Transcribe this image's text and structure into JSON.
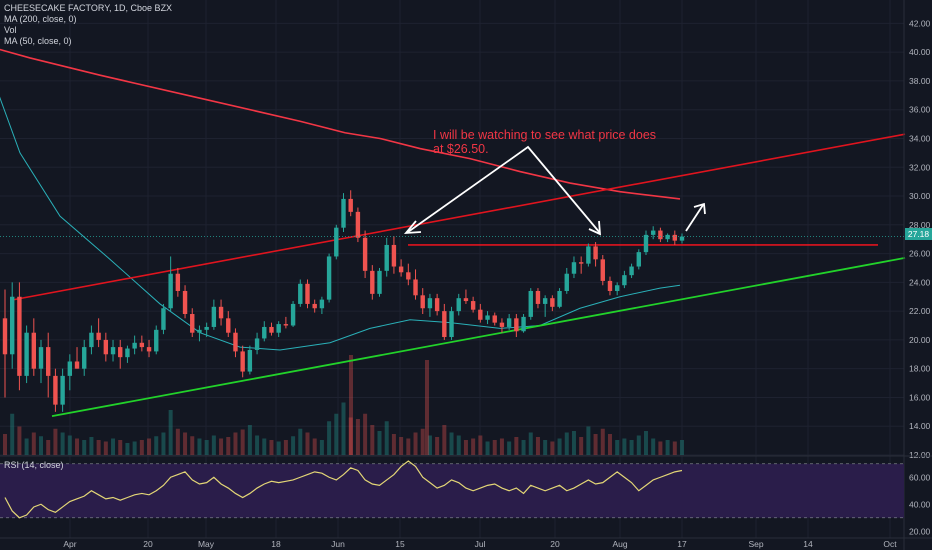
{
  "header": {
    "symbol_line": "CHEESECAKE FACTORY, 1D, Cboe BZX",
    "indicators": [
      "MA (200, close, 0)",
      "Vol",
      "MA (50, close, 0)"
    ],
    "rsi_label": "RSI (14, close)"
  },
  "annotation": {
    "line1": "I will be watching to see what price does",
    "line2": "at $26.50."
  },
  "last_price": "27.18",
  "colors": {
    "background": "#131722",
    "up": "#26a69a",
    "down": "#ef5350",
    "ma200": "#f23645",
    "ma50": "#2ab0b8",
    "rsi": "#e3d676",
    "rsi_band": "#2a1d4a",
    "support": "#22d22a",
    "resistance": "#e0141e",
    "arrow": "#ffffff"
  },
  "chart_data": {
    "type": "candlestick",
    "ylim": [
      12,
      43
    ],
    "yticks": [
      12,
      14,
      16,
      18,
      20,
      22,
      24,
      26,
      28,
      30,
      32,
      34,
      36,
      38,
      40,
      42
    ],
    "xticks": [
      "Apr",
      "20",
      "May",
      "18",
      "Jun",
      "15",
      "Jul",
      "20",
      "Aug",
      "17",
      "Sep",
      "14",
      "Oct"
    ],
    "rsi": {
      "ylim": [
        15,
        75
      ],
      "yticks": [
        "60.00",
        "40.00",
        "20.00"
      ],
      "band": [
        30,
        70
      ]
    },
    "candles_ohlc": [
      [
        21.5,
        23.5,
        16,
        19
      ],
      [
        19,
        24,
        18,
        23
      ],
      [
        23,
        24,
        16.5,
        17.5
      ],
      [
        17.5,
        21,
        17,
        20.5
      ],
      [
        20.5,
        21.5,
        17.5,
        18
      ],
      [
        18,
        20,
        17,
        19.5
      ],
      [
        19.5,
        20.5,
        16,
        17.5
      ],
      [
        17.5,
        18,
        15,
        15.5
      ],
      [
        15.5,
        18,
        15,
        17.5
      ],
      [
        17.5,
        19,
        16.5,
        18.5
      ],
      [
        18.5,
        19.5,
        18,
        18
      ],
      [
        18,
        20,
        17.5,
        19.5
      ],
      [
        19.5,
        21,
        19,
        20.5
      ],
      [
        20.5,
        21.5,
        19.5,
        20
      ],
      [
        20,
        20.5,
        18.5,
        19
      ],
      [
        19,
        20,
        18.5,
        19.5
      ],
      [
        19.5,
        20,
        18,
        18.8
      ],
      [
        18.8,
        19.6,
        18.4,
        19.4
      ],
      [
        19.4,
        20.3,
        19,
        19.8
      ],
      [
        19.8,
        20.3,
        19.2,
        19.5
      ],
      [
        19.5,
        20,
        18.8,
        19.2
      ],
      [
        19.2,
        21,
        19,
        20.7
      ],
      [
        20.7,
        22.5,
        20.4,
        22.2
      ],
      [
        22.2,
        25.8,
        22,
        24.6
      ],
      [
        24.6,
        25,
        23,
        23.4
      ],
      [
        23.4,
        23.8,
        21.5,
        21.8
      ],
      [
        21.8,
        22.2,
        20.2,
        20.5
      ],
      [
        20.5,
        21,
        19.9,
        20.7
      ],
      [
        20.7,
        21.2,
        20.2,
        20.9
      ],
      [
        20.9,
        22.8,
        20.7,
        22.3
      ],
      [
        22.3,
        22.8,
        21,
        21.5
      ],
      [
        21.5,
        22,
        20.2,
        20.5
      ],
      [
        20.5,
        20.8,
        18.8,
        19.2
      ],
      [
        19.2,
        19.6,
        17.4,
        17.8
      ],
      [
        17.8,
        19.6,
        17.6,
        19.3
      ],
      [
        19.3,
        20.5,
        19,
        20.1
      ],
      [
        20.1,
        21.3,
        19.9,
        20.9
      ],
      [
        20.9,
        21.2,
        20.3,
        20.5
      ],
      [
        20.5,
        21.3,
        20.2,
        21.1
      ],
      [
        21.1,
        21.6,
        20.8,
        21
      ],
      [
        21,
        22.7,
        20.9,
        22.5
      ],
      [
        22.5,
        24.2,
        22.3,
        23.9
      ],
      [
        23.9,
        24.2,
        22.2,
        22.5
      ],
      [
        22.5,
        22.8,
        21.9,
        22.2
      ],
      [
        22.2,
        23,
        21.8,
        22.8
      ],
      [
        22.8,
        26,
        22.6,
        25.8
      ],
      [
        25.8,
        28,
        25.6,
        27.8
      ],
      [
        27.8,
        30.2,
        27.5,
        29.8
      ],
      [
        29.8,
        30.4,
        28.6,
        28.9
      ],
      [
        28.9,
        29.2,
        26.8,
        27.1
      ],
      [
        27.1,
        27.6,
        24.3,
        24.8
      ],
      [
        24.8,
        25.2,
        22.8,
        23.2
      ],
      [
        23.2,
        25,
        23,
        24.8
      ],
      [
        24.8,
        27.1,
        24.4,
        26.6
      ],
      [
        26.6,
        27.2,
        24.6,
        25.1
      ],
      [
        25.1,
        25.6,
        24.4,
        24.7
      ],
      [
        24.7,
        25.3,
        23.8,
        24.2
      ],
      [
        24.2,
        24.9,
        22.8,
        23.1
      ],
      [
        23.1,
        23.6,
        21.8,
        22.2
      ],
      [
        22.2,
        23.2,
        21.6,
        22.9
      ],
      [
        22.9,
        23.2,
        21.7,
        22
      ],
      [
        22,
        22.5,
        20,
        20.2
      ],
      [
        20.2,
        22.3,
        20,
        22
      ],
      [
        22,
        23.2,
        21.7,
        22.9
      ],
      [
        22.9,
        23.5,
        22.5,
        22.7
      ],
      [
        22.7,
        23,
        21.9,
        22.1
      ],
      [
        22.1,
        22.5,
        21.2,
        21.4
      ],
      [
        21.4,
        22,
        21.1,
        21.7
      ],
      [
        21.7,
        21.9,
        21,
        21.2
      ],
      [
        21.2,
        21.5,
        20.5,
        20.9
      ],
      [
        20.9,
        21.8,
        20.7,
        21.5
      ],
      [
        21.5,
        21.8,
        20.2,
        20.6
      ],
      [
        20.6,
        21.8,
        20.5,
        21.6
      ],
      [
        21.6,
        23.6,
        21.4,
        23.4
      ],
      [
        23.4,
        23.6,
        22.2,
        22.5
      ],
      [
        22.5,
        23.1,
        21.6,
        22.9
      ],
      [
        22.9,
        23.1,
        22,
        22.3
      ],
      [
        22.3,
        23.6,
        22.2,
        23.4
      ],
      [
        23.4,
        25,
        23.2,
        24.6
      ],
      [
        24.6,
        25.8,
        24.3,
        25.4
      ],
      [
        25.4,
        25.8,
        24.6,
        25.3
      ],
      [
        25.3,
        26.7,
        25.1,
        26.5
      ],
      [
        26.5,
        26.8,
        25.1,
        25.6
      ],
      [
        25.6,
        25.9,
        23.8,
        24.1
      ],
      [
        24.1,
        24.4,
        23.1,
        23.4
      ],
      [
        23.4,
        24,
        23.1,
        23.8
      ],
      [
        23.8,
        24.8,
        23.6,
        24.5
      ],
      [
        24.5,
        25.3,
        24.3,
        25.1
      ],
      [
        25.1,
        26.3,
        24.9,
        26.1
      ],
      [
        26.1,
        27.6,
        25.9,
        27.3
      ],
      [
        27.3,
        27.9,
        27,
        27.6
      ],
      [
        27.6,
        27.8,
        26.8,
        27
      ],
      [
        27,
        27.4,
        26.8,
        27.3
      ],
      [
        27.3,
        27.6,
        26.6,
        26.9
      ],
      [
        26.9,
        27.4,
        26.7,
        27.18
      ]
    ],
    "volume_relative": [
      0.28,
      0.55,
      0.38,
      0.22,
      0.3,
      0.25,
      0.2,
      0.35,
      0.3,
      0.26,
      0.22,
      0.2,
      0.24,
      0.2,
      0.18,
      0.22,
      0.2,
      0.16,
      0.18,
      0.2,
      0.22,
      0.25,
      0.3,
      0.6,
      0.35,
      0.3,
      0.25,
      0.22,
      0.2,
      0.26,
      0.22,
      0.24,
      0.3,
      0.34,
      0.4,
      0.26,
      0.22,
      0.2,
      0.18,
      0.2,
      0.25,
      0.35,
      0.3,
      0.22,
      0.2,
      0.45,
      0.55,
      0.7,
      0.5,
      0.48,
      0.55,
      0.4,
      0.32,
      0.45,
      0.28,
      0.24,
      0.22,
      0.3,
      0.35,
      0.26,
      0.24,
      0.4,
      0.3,
      0.26,
      0.2,
      0.22,
      0.26,
      0.18,
      0.2,
      0.22,
      0.18,
      0.24,
      0.2,
      0.3,
      0.24,
      0.2,
      0.18,
      0.22,
      0.3,
      0.32,
      0.24,
      0.38,
      0.28,
      0.35,
      0.28,
      0.2,
      0.22,
      0.2,
      0.26,
      0.32,
      0.22,
      0.18,
      0.2,
      0.18,
      0.2
    ],
    "volume_big": [
      1.0,
      0.95
    ],
    "ma200": [
      [
        -1,
        40.2
      ],
      [
        30,
        39.6
      ],
      [
        100,
        38.4
      ],
      [
        200,
        36.8
      ],
      [
        300,
        35.2
      ],
      [
        345,
        34.4
      ],
      [
        380,
        34
      ],
      [
        420,
        33.3
      ],
      [
        470,
        32.6
      ],
      [
        520,
        31.7
      ],
      [
        570,
        30.9
      ],
      [
        620,
        30.3
      ],
      [
        680,
        29.8
      ]
    ],
    "ma50": [
      [
        -1,
        37
      ],
      [
        20,
        33
      ],
      [
        60,
        28.6
      ],
      [
        110,
        25.6
      ],
      [
        160,
        22.5
      ],
      [
        200,
        20.5
      ],
      [
        240,
        19.5
      ],
      [
        280,
        19.3
      ],
      [
        330,
        19.8
      ],
      [
        370,
        20.8
      ],
      [
        410,
        21.4
      ],
      [
        450,
        21.2
      ],
      [
        500,
        20.8
      ],
      [
        540,
        21
      ],
      [
        580,
        22.2
      ],
      [
        620,
        23
      ],
      [
        660,
        23.6
      ],
      [
        680,
        23.8
      ]
    ],
    "support_line": {
      "from": [
        52,
        14.7
      ],
      "to": [
        905,
        25.7
      ]
    },
    "resistance_line": {
      "from": [
        14,
        22.8
      ],
      "to": [
        905,
        34.3
      ]
    },
    "level_line": {
      "from": [
        408,
        26.6
      ],
      "to": [
        878,
        26.6
      ]
    },
    "rsi_values": [
      45,
      35,
      30,
      32,
      38,
      40,
      36,
      34,
      38,
      42,
      44,
      46,
      50,
      47,
      44,
      45,
      43,
      45,
      47,
      48,
      47,
      50,
      54,
      60,
      62,
      64,
      58,
      55,
      56,
      60,
      55,
      52,
      48,
      45,
      48,
      52,
      55,
      57,
      56,
      57,
      58,
      60,
      62,
      64,
      63,
      60,
      58,
      62,
      67,
      65,
      58,
      55,
      54,
      58,
      62,
      68,
      72,
      68,
      60,
      56,
      52,
      54,
      58,
      56,
      52,
      50,
      52,
      54,
      55,
      52,
      50,
      52,
      48,
      54,
      52,
      50,
      52,
      54,
      50,
      52,
      55,
      58,
      55,
      56,
      60,
      64,
      60,
      56,
      50,
      54,
      58,
      60,
      62,
      64,
      65
    ]
  }
}
